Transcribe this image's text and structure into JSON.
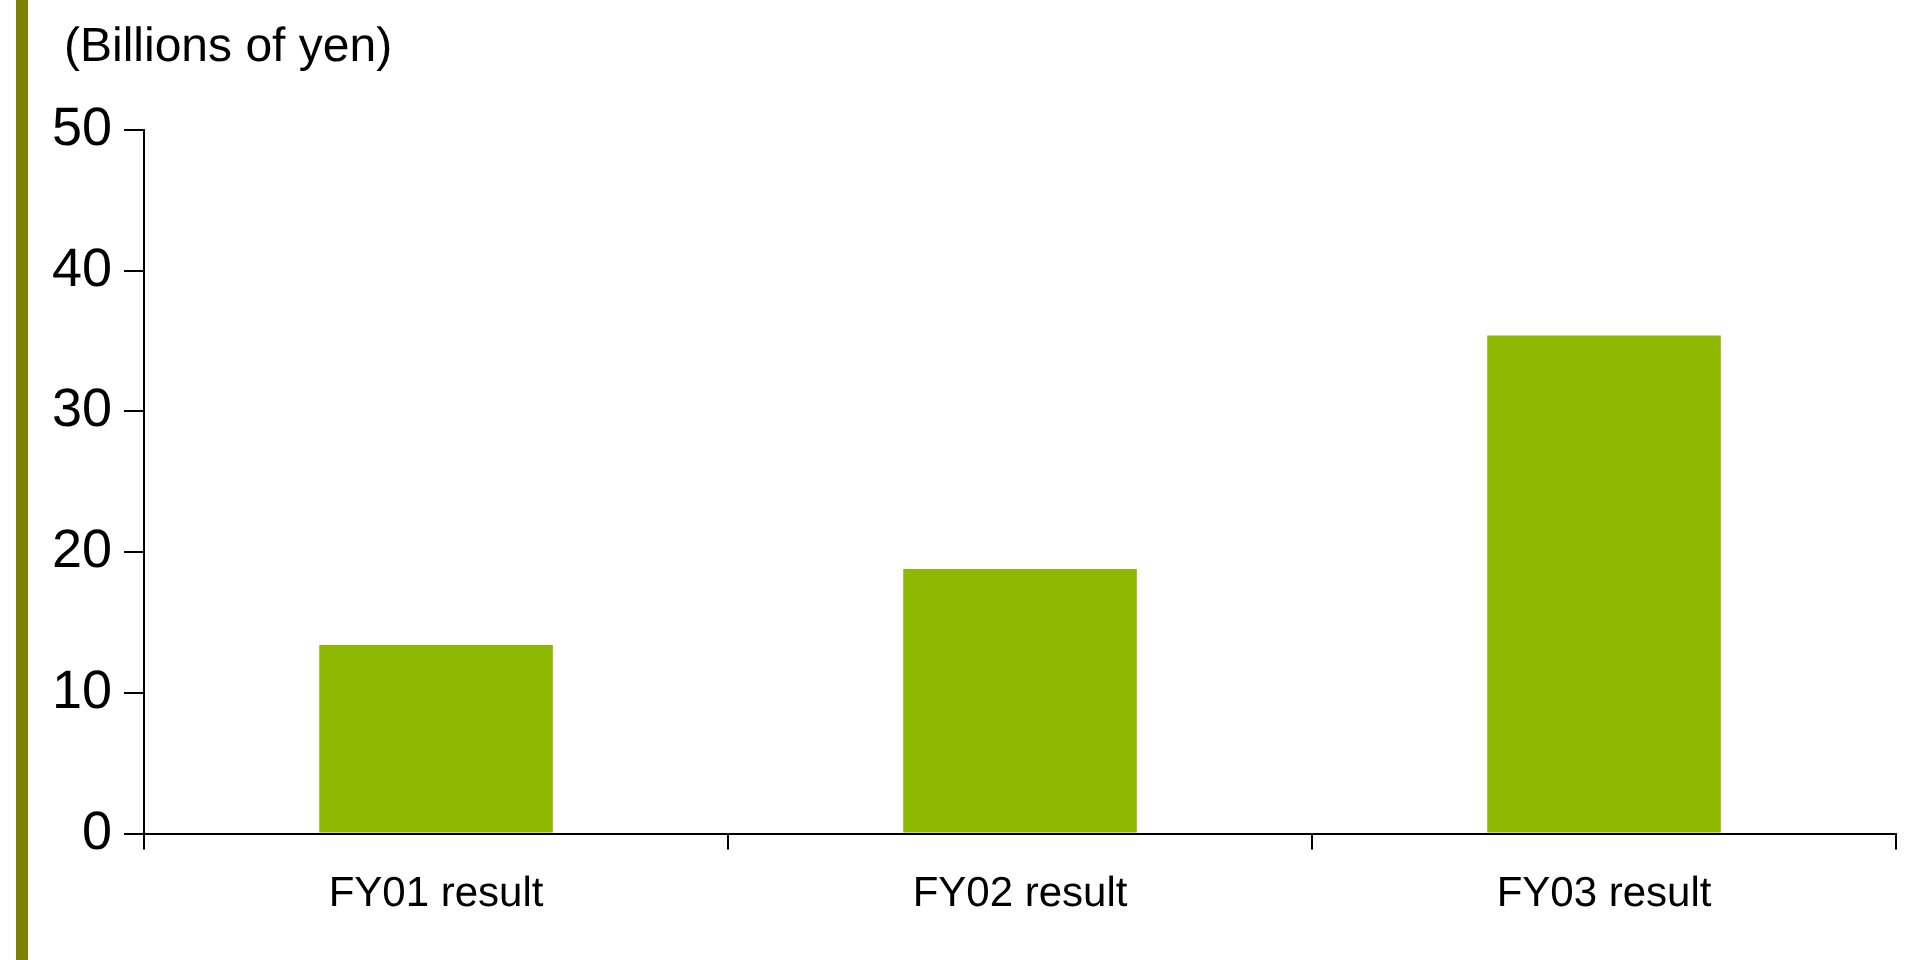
{
  "chart_data": {
    "type": "bar",
    "ylabel": "(Billions of yen)",
    "categories": [
      "FY01 result",
      "FY02 result",
      "FY03 result"
    ],
    "values": [
      13.4,
      18.8,
      35.4
    ],
    "color": "#8db800",
    "ylim": [
      0,
      50
    ],
    "yticks": [
      0,
      10,
      20,
      30,
      40,
      50
    ],
    "grid": false,
    "legend": false
  }
}
